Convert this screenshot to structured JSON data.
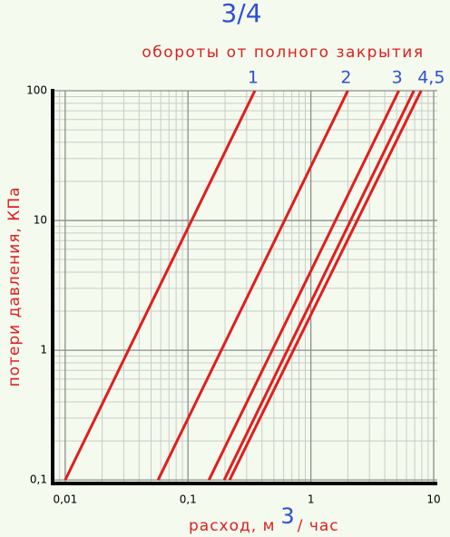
{
  "chart_data": {
    "type": "line",
    "title": "3/4",
    "subtitle": "обороты от полного закрытия",
    "y_label": "потери давления, КПа",
    "x_label": "расход, м",
    "x_label_sup": "3",
    "x_label_tail": "/ час",
    "log_x": true,
    "log_y": true,
    "grid": true,
    "minor_grid": true,
    "xlim": [
      0.0079,
      10.7
    ],
    "ylim": [
      0.094,
      100
    ],
    "xticks": [
      {
        "value": 0.01,
        "label": "0,01"
      },
      {
        "value": 0.1,
        "label": "0,1"
      },
      1,
      10
    ],
    "yticks": [
      {
        "value": 0.1,
        "label": "0,1"
      },
      1,
      10,
      100
    ],
    "line_labels": [
      "1",
      "2",
      "3",
      "4,5"
    ],
    "series": [
      {
        "color": "#e01e1e",
        "x": [
          0.01,
          0.35
        ],
        "values": [
          0.1,
          100
        ]
      },
      {
        "color": "#e01e1e",
        "x": [
          0.057,
          2.0
        ],
        "values": [
          0.1,
          100
        ]
      },
      {
        "color": "#e01e1e",
        "x": [
          0.148,
          5.2
        ],
        "values": [
          0.1,
          100
        ]
      },
      {
        "color": "#e01e1e",
        "x": [
          0.197,
          6.9
        ],
        "values": [
          0.1,
          100
        ]
      },
      {
        "color": "#e01e1e",
        "x": [
          0.218,
          7.9
        ],
        "values": [
          0.1,
          100
        ]
      }
    ]
  }
}
